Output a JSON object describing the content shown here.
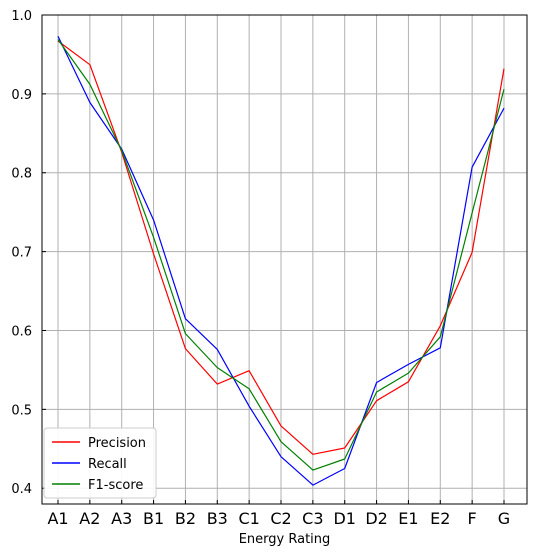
{
  "chart_data": {
    "type": "line",
    "title": "",
    "xlabel": "Energy Rating",
    "ylabel": "",
    "categories": [
      "A1",
      "A2",
      "A3",
      "B1",
      "B2",
      "B3",
      "C1",
      "C2",
      "C3",
      "D1",
      "D2",
      "E1",
      "E2",
      "F",
      "G"
    ],
    "ylim": [
      0.38,
      1.0
    ],
    "yticks": [
      0.4,
      0.5,
      0.6,
      0.7,
      0.8,
      0.9,
      1.0
    ],
    "ytick_labels": [
      "0.4",
      "0.5",
      "0.6",
      "0.7",
      "0.8",
      "0.9",
      "1.0"
    ],
    "grid": true,
    "legend_position": "bottom-left",
    "series": [
      {
        "name": "Precision",
        "color": "#ff0000",
        "values": [
          0.967,
          0.937,
          0.826,
          0.697,
          0.577,
          0.532,
          0.549,
          0.479,
          0.443,
          0.451,
          0.511,
          0.535,
          0.606,
          0.699,
          0.932
        ]
      },
      {
        "name": "Recall",
        "color": "#0000ff",
        "values": [
          0.973,
          0.889,
          0.83,
          0.74,
          0.615,
          0.576,
          0.504,
          0.44,
          0.404,
          0.425,
          0.534,
          0.557,
          0.578,
          0.807,
          0.882
        ]
      },
      {
        "name": "F1-score",
        "color": "#008000",
        "values": [
          0.969,
          0.912,
          0.828,
          0.718,
          0.596,
          0.553,
          0.526,
          0.459,
          0.423,
          0.437,
          0.522,
          0.546,
          0.592,
          0.749,
          0.906
        ]
      }
    ]
  }
}
